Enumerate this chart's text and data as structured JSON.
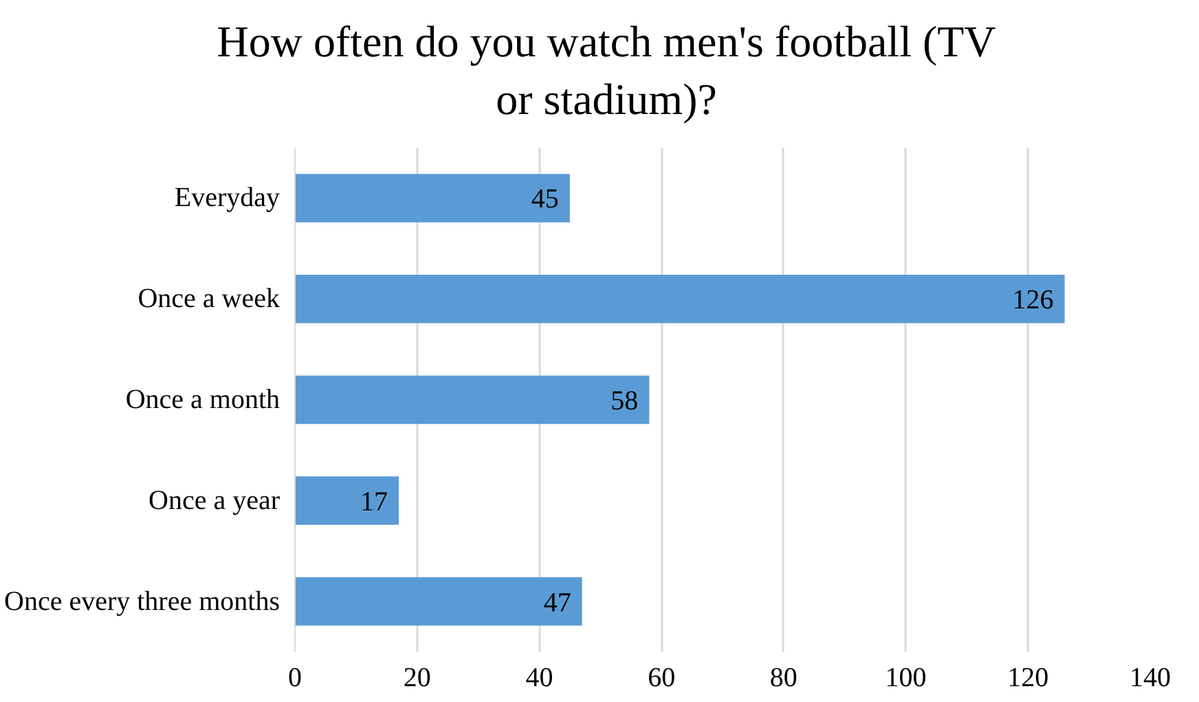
{
  "chart_data": {
    "type": "bar",
    "orientation": "horizontal",
    "title": "How often do you watch men's football (TV or stadium)?",
    "categories": [
      "Everyday",
      "Once a week",
      "Once a month",
      "Once a year",
      "Once every three months"
    ],
    "values": [
      45,
      126,
      58,
      17,
      47
    ],
    "color": "#5b9bd5",
    "xlim": [
      0,
      140
    ],
    "xticks": [
      0,
      20,
      40,
      60,
      80,
      100,
      120,
      140
    ],
    "grid": "x",
    "data_labels": true
  }
}
